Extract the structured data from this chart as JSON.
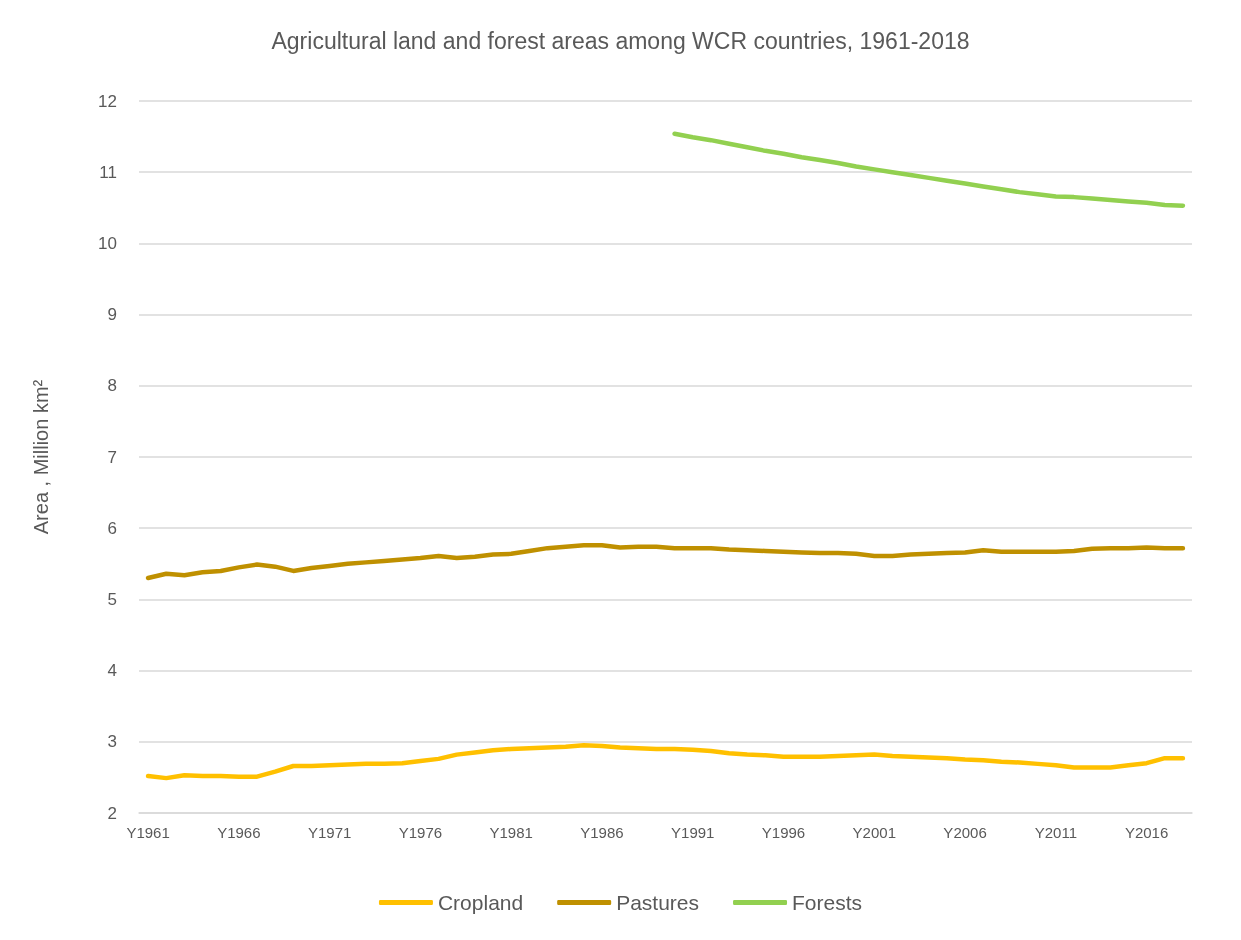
{
  "chart_data": {
    "type": "line",
    "title": "Agricultural land and forest areas among WCR countries, 1961-2018",
    "ylabel": "Area , Million km²",
    "categories": [
      "Y1961",
      null,
      null,
      null,
      null,
      "Y1966",
      null,
      null,
      null,
      null,
      "Y1971",
      null,
      null,
      null,
      null,
      "Y1976",
      null,
      null,
      null,
      null,
      "Y1981",
      null,
      null,
      null,
      null,
      "Y1986",
      null,
      null,
      null,
      null,
      "Y1991",
      null,
      null,
      null,
      null,
      "Y1996",
      null,
      null,
      null,
      null,
      "Y2001",
      null,
      null,
      null,
      null,
      "Y2006",
      null,
      null,
      null,
      null,
      "Y2011",
      null,
      null,
      null,
      null,
      "Y2016",
      null,
      null
    ],
    "series": [
      {
        "name": "Cropland",
        "color": "#ffc000",
        "values": [
          2.52,
          2.49,
          2.53,
          2.52,
          2.52,
          2.51,
          2.51,
          2.58,
          2.66,
          2.66,
          2.67,
          2.68,
          2.69,
          2.69,
          2.7,
          2.73,
          2.76,
          2.82,
          2.85,
          2.88,
          2.9,
          2.91,
          2.92,
          2.93,
          2.95,
          2.94,
          2.92,
          2.91,
          2.9,
          2.9,
          2.89,
          2.87,
          2.84,
          2.82,
          2.81,
          2.79,
          2.79,
          2.79,
          2.8,
          2.81,
          2.82,
          2.8,
          2.79,
          2.78,
          2.77,
          2.75,
          2.74,
          2.72,
          2.71,
          2.69,
          2.67,
          2.64,
          2.64,
          2.64,
          2.67,
          2.7,
          2.77,
          2.77
        ]
      },
      {
        "name": "Pastures",
        "color": "#bf9000",
        "values": [
          5.3,
          5.36,
          5.34,
          5.38,
          5.4,
          5.45,
          5.49,
          5.46,
          5.4,
          5.44,
          5.47,
          5.5,
          5.52,
          5.54,
          5.56,
          5.58,
          5.61,
          5.58,
          5.6,
          5.63,
          5.64,
          5.68,
          5.72,
          5.74,
          5.76,
          5.76,
          5.73,
          5.74,
          5.74,
          5.72,
          5.72,
          5.72,
          5.7,
          5.69,
          5.68,
          5.67,
          5.66,
          5.65,
          5.65,
          5.64,
          5.61,
          5.61,
          5.63,
          5.64,
          5.65,
          5.66,
          5.69,
          5.67,
          5.67,
          5.67,
          5.67,
          5.68,
          5.71,
          5.72,
          5.72,
          5.73,
          5.72,
          5.72
        ]
      },
      {
        "name": "Forests",
        "color": "#92d050",
        "values": [
          null,
          null,
          null,
          null,
          null,
          null,
          null,
          null,
          null,
          null,
          null,
          null,
          null,
          null,
          null,
          null,
          null,
          null,
          null,
          null,
          null,
          null,
          null,
          null,
          null,
          null,
          null,
          null,
          null,
          11.54,
          11.49,
          11.45,
          11.4,
          11.35,
          11.3,
          11.26,
          11.21,
          11.17,
          11.13,
          11.08,
          11.04,
          11.0,
          10.96,
          10.92,
          10.88,
          10.84,
          10.8,
          10.76,
          10.72,
          10.69,
          10.66,
          10.65,
          10.63,
          10.61,
          10.59,
          10.57,
          10.54,
          10.53
        ]
      }
    ],
    "ylim": [
      2,
      12
    ],
    "yticks": [
      2,
      3,
      4,
      5,
      6,
      7,
      8,
      9,
      10,
      11,
      12
    ],
    "grid": "y",
    "legend": "bottom",
    "line_style": "solid"
  }
}
